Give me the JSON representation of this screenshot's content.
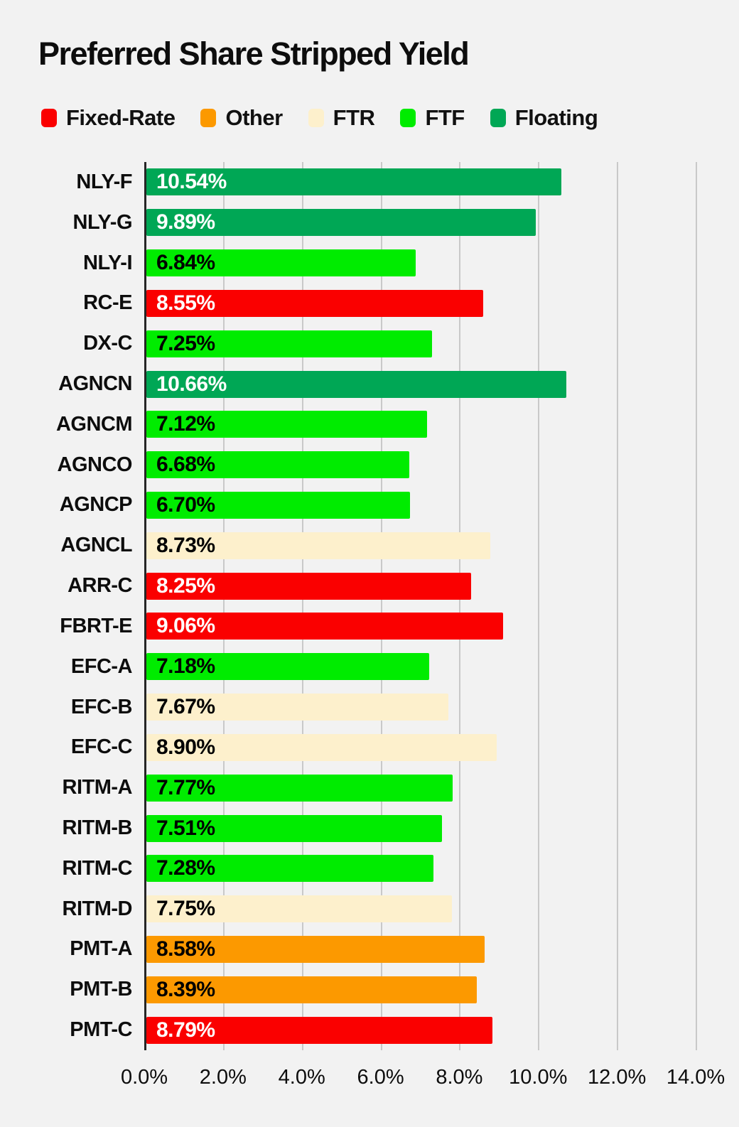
{
  "page": {
    "background_color": "#F2F2F2",
    "gridline_color": "#C9C9C9",
    "axis_line_color": "#262626",
    "text_color": "#0d0d0d"
  },
  "chart_data": {
    "type": "bar",
    "orientation": "horizontal",
    "title": "Preferred Share Stripped Yield",
    "xlabel": "",
    "ylabel": "",
    "xlim": [
      0,
      14
    ],
    "grid": "vertical",
    "legend_position": "top",
    "legend": [
      {
        "label": "Fixed-Rate",
        "color": "#FA0000",
        "value_text_color": "#FFFFFF"
      },
      {
        "label": "Other",
        "color": "#FC9900",
        "value_text_color": "#000000"
      },
      {
        "label": "FTR",
        "color": "#FDF0CC",
        "value_text_color": "#000000"
      },
      {
        "label": "FTF",
        "color": "#00EC00",
        "value_text_color": "#000000"
      },
      {
        "label": "Floating",
        "color": "#00A755",
        "value_text_color": "#FFFFFF"
      }
    ],
    "categories": [
      "NLY-F",
      "NLY-G",
      "NLY-I",
      "RC-E",
      "DX-C",
      "AGNCN",
      "AGNCM",
      "AGNCO",
      "AGNCP",
      "AGNCL",
      "ARR-C",
      "FBRT-E",
      "EFC-A",
      "EFC-B",
      "EFC-C",
      "RITM-A",
      "RITM-B",
      "RITM-C",
      "RITM-D",
      "PMT-A",
      "PMT-B",
      "PMT-C"
    ],
    "values": [
      10.54,
      9.89,
      6.84,
      8.55,
      7.25,
      10.66,
      7.12,
      6.68,
      6.7,
      8.73,
      8.25,
      9.06,
      7.18,
      7.67,
      8.9,
      7.77,
      7.51,
      7.28,
      7.75,
      8.58,
      8.39,
      8.79
    ],
    "value_labels": [
      "10.54%",
      "9.89%",
      "6.84%",
      "8.55%",
      "7.25%",
      "10.66%",
      "7.12%",
      "6.68%",
      "6.70%",
      "8.73%",
      "8.25%",
      "9.06%",
      "7.18%",
      "7.67%",
      "8.90%",
      "7.77%",
      "7.51%",
      "7.28%",
      "7.75%",
      "8.58%",
      "8.39%",
      "8.79%"
    ],
    "series_group": [
      "Floating",
      "Floating",
      "FTF",
      "Fixed-Rate",
      "FTF",
      "Floating",
      "FTF",
      "FTF",
      "FTF",
      "FTR",
      "Fixed-Rate",
      "Fixed-Rate",
      "FTF",
      "FTR",
      "FTR",
      "FTF",
      "FTF",
      "FTF",
      "FTR",
      "Other",
      "Other",
      "Fixed-Rate"
    ],
    "x_ticks": [
      "0.0%",
      "2.0%",
      "4.0%",
      "6.0%",
      "8.0%",
      "10.0%",
      "12.0%",
      "14.0%"
    ],
    "x_tick_values": [
      0,
      2,
      4,
      6,
      8,
      10,
      12,
      14
    ]
  }
}
